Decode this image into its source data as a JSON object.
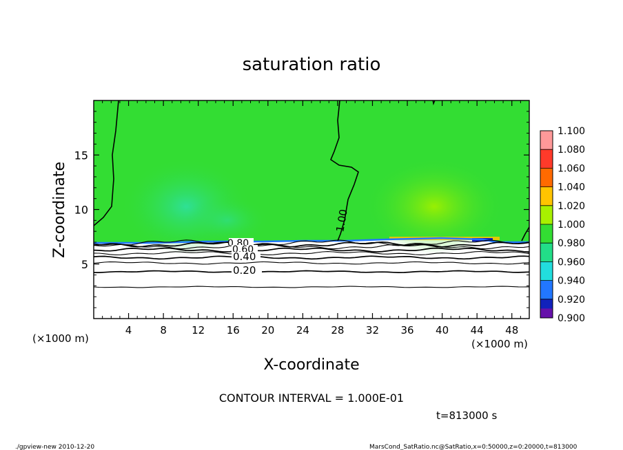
{
  "chart_data": {
    "type": "contour",
    "title": "saturation ratio",
    "xlabel": "X-coordinate",
    "ylabel": "Z-coordinate",
    "x_unit_left": "(×1000 m)",
    "x_unit_right": "(×1000 m)",
    "xlim": [
      0,
      50
    ],
    "ylim": [
      0,
      20
    ],
    "x_ticks": [
      4,
      8,
      12,
      16,
      20,
      24,
      28,
      32,
      36,
      40,
      44,
      48
    ],
    "y_ticks": [
      5,
      10,
      15
    ],
    "contour_interval_text": "CONTOUR INTERVAL = 1.000E-01",
    "time_text": "t=813000 s",
    "contour_labels": [
      "0.20",
      "0.40",
      "0.60",
      "0.80",
      "1.00"
    ],
    "contour_levels_z_km": [
      {
        "level": 0.1,
        "z": 2.9
      },
      {
        "level": 0.2,
        "z": 4.3
      },
      {
        "level": 0.3,
        "z": 5.1
      },
      {
        "level": 0.4,
        "z": 5.6
      },
      {
        "level": 0.5,
        "z": 6.0
      },
      {
        "level": 0.6,
        "z": 6.3
      },
      {
        "level": 0.7,
        "z": 6.6
      },
      {
        "level": 0.8,
        "z": 6.8
      },
      {
        "level": 0.9,
        "z": 6.95
      }
    ],
    "colorbar": {
      "levels": [
        "1.100",
        "1.080",
        "1.060",
        "1.040",
        "1.020",
        "1.000",
        "0.980",
        "0.960",
        "0.940",
        "0.920",
        "0.900"
      ],
      "colors": [
        "#ff9999",
        "#ff3a2a",
        "#ff6a00",
        "#ffc400",
        "#a8f000",
        "#33dd33",
        "#22dd88",
        "#22dddd",
        "#2277ff",
        "#1122bb",
        "#6611aa"
      ]
    }
  },
  "footer": {
    "left": "./gpview-new  2010-12-20",
    "right": "MarsCond_SatRatio.nc@SatRatio,x=0:50000,z=0:20000,t=813000"
  }
}
